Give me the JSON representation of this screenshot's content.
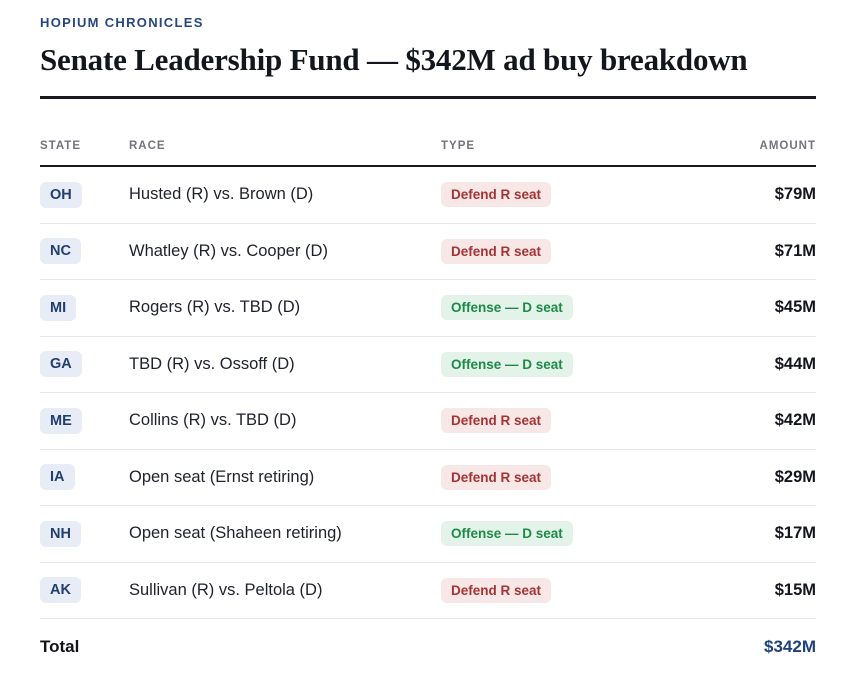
{
  "page": {
    "eyebrow": "HOPIUM CHRONICLES",
    "title": "Senate Leadership Fund — $342M ad buy breakdown"
  },
  "table": {
    "columns": {
      "state": "STATE",
      "race": "RACE",
      "type": "TYPE",
      "amount": "AMOUNT"
    },
    "rows": [
      {
        "state": "OH",
        "race": "Husted (R) vs. Brown (D)",
        "type": "Defend R seat",
        "type_kind": "defend",
        "amount": "$79M"
      },
      {
        "state": "NC",
        "race": "Whatley (R) vs. Cooper (D)",
        "type": "Defend R seat",
        "type_kind": "defend",
        "amount": "$71M"
      },
      {
        "state": "MI",
        "race": "Rogers (R) vs. TBD (D)",
        "type": "Offense — D seat",
        "type_kind": "offense",
        "amount": "$45M"
      },
      {
        "state": "GA",
        "race": "TBD (R) vs. Ossoff (D)",
        "type": "Offense — D seat",
        "type_kind": "offense",
        "amount": "$44M"
      },
      {
        "state": "ME",
        "race": "Collins (R) vs. TBD (D)",
        "type": "Defend R seat",
        "type_kind": "defend",
        "amount": "$42M"
      },
      {
        "state": "IA",
        "race": "Open seat (Ernst retiring)",
        "type": "Defend R seat",
        "type_kind": "defend",
        "amount": "$29M"
      },
      {
        "state": "NH",
        "race": "Open seat (Shaheen retiring)",
        "type": "Offense — D seat",
        "type_kind": "offense",
        "amount": "$17M"
      },
      {
        "state": "AK",
        "race": "Sullivan (R) vs. Peltola (D)",
        "type": "Defend R seat",
        "type_kind": "defend",
        "amount": "$15M"
      }
    ],
    "total": {
      "label": "Total",
      "amount": "$342M"
    }
  },
  "colors": {
    "eyebrow_text": "#27477e",
    "title_text": "#14161d",
    "rule": "#17191f",
    "column_header_text": "#73757d",
    "row_divider": "#e9e9ec",
    "state_badge_bg": "#e7ecf6",
    "state_badge_text": "#203f6f",
    "defend_badge_bg": "#f7e7e7",
    "defend_badge_text": "#a43434",
    "offense_badge_bg": "#e4f3ea",
    "offense_badge_text": "#1e8a48",
    "total_amount_text": "#1e4179"
  }
}
